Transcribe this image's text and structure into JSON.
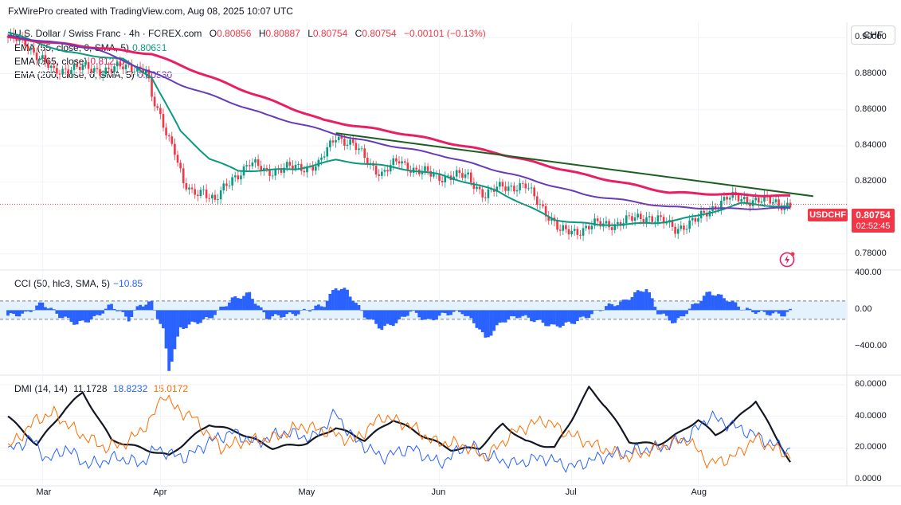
{
  "header": {
    "text": "FxWirePro created with TradingView.com, Aug 08, 2025 10:07 UTC"
  },
  "symbol": {
    "title": "U.S. Dollar / Swiss Franc · 4h · FOREX.com",
    "open_label": "O",
    "open": "0.80856",
    "high_label": "H",
    "high": "0.80887",
    "low_label": "L",
    "low": "0.80754",
    "close_label": "C",
    "close": "0.80754",
    "change": "−0.00101 (−0.13%)",
    "ticker": "USDCHF",
    "last_price": "0.80754",
    "countdown": "02:52:45",
    "currency": "CHF"
  },
  "indicators": {
    "ema55": {
      "label": "EMA (55, close, 0, SMA, 5)",
      "value": "0.80631",
      "color": "#089981"
    },
    "ema365": {
      "label": "EMA (365, close)",
      "value": "0.81210",
      "color": "#e91e63"
    },
    "ema200": {
      "label": "EMA (200, close, 0, SMA, 5)",
      "value": "0.80530",
      "color": "#673ab7"
    },
    "cci": {
      "label": "CCI (50, hlc3, SMA, 5)",
      "value": "−10.85",
      "color": "#2962ff"
    },
    "dmi": {
      "label": "DMI (14, 14)",
      "adx": "11.1728",
      "plus_di": "18.8232",
      "minus_di": "15.0172",
      "adx_color": "#131722",
      "plus_color": "#2962ff",
      "minus_color": "#ff6d00"
    }
  },
  "colors": {
    "up": "#089981",
    "down": "#f23645",
    "trendline": "#1b5e20",
    "cci_band": "#e3f2fd"
  },
  "chart_data": [
    {
      "type": "candlestick",
      "title": "U.S. Dollar / Swiss Franc · 4h · FOREX.com",
      "x_tick_labels": [
        "Mar",
        "Apr",
        "May",
        "Jun",
        "Jul",
        "Aug"
      ],
      "y_tick_labels": [
        "0.90000",
        "0.88000",
        "0.86000",
        "0.84000",
        "0.82000",
        "0.78000"
      ],
      "ylim": [
        0.775,
        0.905
      ],
      "price_anchors": [
        [
          0,
          0.9
        ],
        [
          6,
          0.897
        ],
        [
          12,
          0.888
        ],
        [
          16,
          0.88
        ],
        [
          22,
          0.884
        ],
        [
          30,
          0.882
        ],
        [
          38,
          0.883
        ],
        [
          44,
          0.884
        ],
        [
          48,
          0.882
        ],
        [
          50,
          0.866
        ],
        [
          54,
          0.852
        ],
        [
          58,
          0.838
        ],
        [
          61,
          0.818
        ],
        [
          64,
          0.813
        ],
        [
          68,
          0.816
        ],
        [
          72,
          0.809
        ],
        [
          78,
          0.822
        ],
        [
          84,
          0.83
        ],
        [
          90,
          0.826
        ],
        [
          100,
          0.828
        ],
        [
          108,
          0.829
        ],
        [
          114,
          0.846
        ],
        [
          120,
          0.84
        ],
        [
          130,
          0.824
        ],
        [
          136,
          0.832
        ],
        [
          142,
          0.826
        ],
        [
          150,
          0.823
        ],
        [
          160,
          0.823
        ],
        [
          166,
          0.812
        ],
        [
          172,
          0.818
        ],
        [
          180,
          0.817
        ],
        [
          186,
          0.806
        ],
        [
          192,
          0.792
        ],
        [
          198,
          0.793
        ],
        [
          204,
          0.796
        ],
        [
          212,
          0.797
        ],
        [
          222,
          0.801
        ],
        [
          226,
          0.799
        ],
        [
          232,
          0.794
        ],
        [
          240,
          0.799
        ],
        [
          246,
          0.807
        ],
        [
          250,
          0.811
        ],
        [
          260,
          0.81
        ],
        [
          268,
          0.808
        ],
        [
          272,
          0.8075
        ]
      ],
      "series": [
        {
          "name": "EMA (55, close, 0, SMA, 5)",
          "anchors": [
            [
              0,
              0.903
            ],
            [
              20,
              0.892
            ],
            [
              40,
              0.888
            ],
            [
              50,
              0.878
            ],
            [
              60,
              0.848
            ],
            [
              70,
              0.833
            ],
            [
              80,
              0.826
            ],
            [
              100,
              0.827
            ],
            [
              114,
              0.832
            ],
            [
              130,
              0.829
            ],
            [
              150,
              0.824
            ],
            [
              170,
              0.815
            ],
            [
              190,
              0.799
            ],
            [
              205,
              0.796
            ],
            [
              225,
              0.797
            ],
            [
              240,
              0.801
            ],
            [
              255,
              0.808
            ],
            [
              272,
              0.806
            ]
          ]
        },
        {
          "name": "EMA (365, close)",
          "anchors": [
            [
              0,
              0.9
            ],
            [
              50,
              0.891
            ],
            [
              80,
              0.872
            ],
            [
              110,
              0.854
            ],
            [
              140,
              0.846
            ],
            [
              170,
              0.836
            ],
            [
              200,
              0.824
            ],
            [
              230,
              0.814
            ],
            [
              272,
              0.812
            ]
          ]
        },
        {
          "name": "EMA (200, close, 0, SMA, 5)",
          "anchors": [
            [
              0,
              0.901
            ],
            [
              30,
              0.894
            ],
            [
              60,
              0.874
            ],
            [
              90,
              0.857
            ],
            [
              120,
              0.844
            ],
            [
              150,
              0.835
            ],
            [
              180,
              0.822
            ],
            [
              200,
              0.813
            ],
            [
              230,
              0.806
            ],
            [
              250,
              0.805
            ],
            [
              272,
              0.8053
            ]
          ]
        }
      ],
      "trendline": [
        [
          114,
          0.847
        ],
        [
          280,
          0.812
        ]
      ],
      "last_price": 0.80754
    },
    {
      "type": "bar",
      "title": "CCI (50, hlc3, SMA, 5)",
      "y_tick_labels": [
        "400.00",
        "0.00",
        "−400.00"
      ],
      "ylim": [
        -700,
        420
      ],
      "bands": [
        100,
        -100
      ],
      "anchors": [
        [
          0,
          -60
        ],
        [
          6,
          -40
        ],
        [
          12,
          80
        ],
        [
          18,
          -60
        ],
        [
          24,
          -150
        ],
        [
          30,
          -90
        ],
        [
          36,
          60
        ],
        [
          42,
          -100
        ],
        [
          46,
          60
        ],
        [
          50,
          80
        ],
        [
          54,
          -220
        ],
        [
          56,
          -650
        ],
        [
          60,
          -200
        ],
        [
          64,
          -150
        ],
        [
          70,
          -90
        ],
        [
          78,
          120
        ],
        [
          84,
          180
        ],
        [
          90,
          -80
        ],
        [
          100,
          -40
        ],
        [
          110,
          60
        ],
        [
          114,
          250
        ],
        [
          118,
          210
        ],
        [
          124,
          -60
        ],
        [
          130,
          -200
        ],
        [
          136,
          -120
        ],
        [
          140,
          -10
        ],
        [
          146,
          -120
        ],
        [
          152,
          -40
        ],
        [
          158,
          -20
        ],
        [
          164,
          -200
        ],
        [
          166,
          -320
        ],
        [
          172,
          -120
        ],
        [
          178,
          -60
        ],
        [
          184,
          -120
        ],
        [
          190,
          -180
        ],
        [
          196,
          -140
        ],
        [
          202,
          -60
        ],
        [
          208,
          40
        ],
        [
          214,
          90
        ],
        [
          218,
          180
        ],
        [
          222,
          240
        ],
        [
          226,
          -20
        ],
        [
          232,
          -140
        ],
        [
          238,
          40
        ],
        [
          244,
          200
        ],
        [
          250,
          120
        ],
        [
          256,
          10
        ],
        [
          262,
          -30
        ],
        [
          270,
          -50
        ],
        [
          272,
          -10.85
        ]
      ]
    },
    {
      "type": "line",
      "title": "DMI (14, 14)",
      "y_tick_labels": [
        "60.0000",
        "40.0000",
        "20.0000",
        "0.0000"
      ],
      "ylim": [
        0,
        62
      ],
      "series": [
        {
          "name": "ADX",
          "anchors": [
            [
              0,
              40
            ],
            [
              10,
              22
            ],
            [
              20,
              45
            ],
            [
              26,
              55
            ],
            [
              36,
              25
            ],
            [
              46,
              20
            ],
            [
              56,
              15
            ],
            [
              62,
              24
            ],
            [
              70,
              35
            ],
            [
              80,
              30
            ],
            [
              92,
              20
            ],
            [
              104,
              23
            ],
            [
              114,
              33
            ],
            [
              124,
              25
            ],
            [
              134,
              38
            ],
            [
              144,
              28
            ],
            [
              154,
              19
            ],
            [
              164,
              20
            ],
            [
              172,
              35
            ],
            [
              180,
              24
            ],
            [
              190,
              20
            ],
            [
              196,
              38
            ],
            [
              202,
              58
            ],
            [
              208,
              46
            ],
            [
              216,
              24
            ],
            [
              226,
              22
            ],
            [
              234,
              30
            ],
            [
              240,
              38
            ],
            [
              246,
              28
            ],
            [
              252,
              36
            ],
            [
              260,
              50
            ],
            [
              266,
              30
            ],
            [
              272,
              11.17
            ]
          ]
        },
        {
          "name": "+DI",
          "anchors": [
            [
              0,
              18
            ],
            [
              8,
              26
            ],
            [
              14,
              12
            ],
            [
              20,
              20
            ],
            [
              28,
              9
            ],
            [
              38,
              14
            ],
            [
              46,
              10
            ],
            [
              52,
              20
            ],
            [
              56,
              16
            ],
            [
              62,
              14
            ],
            [
              70,
              24
            ],
            [
              78,
              30
            ],
            [
              86,
              23
            ],
            [
              96,
              30
            ],
            [
              106,
              26
            ],
            [
              114,
              42
            ],
            [
              120,
              26
            ],
            [
              130,
              14
            ],
            [
              140,
              20
            ],
            [
              150,
              10
            ],
            [
              160,
              22
            ],
            [
              168,
              14
            ],
            [
              176,
              10
            ],
            [
              186,
              14
            ],
            [
              196,
              8
            ],
            [
              206,
              14
            ],
            [
              216,
              18
            ],
            [
              226,
              20
            ],
            [
              236,
              26
            ],
            [
              244,
              40
            ],
            [
              252,
              34
            ],
            [
              260,
              28
            ],
            [
              266,
              22
            ],
            [
              272,
              18.82
            ]
          ]
        },
        {
          "name": "−DI",
          "anchors": [
            [
              0,
              20
            ],
            [
              10,
              38
            ],
            [
              16,
              42
            ],
            [
              24,
              30
            ],
            [
              34,
              20
            ],
            [
              42,
              24
            ],
            [
              50,
              38
            ],
            [
              54,
              55
            ],
            [
              58,
              45
            ],
            [
              64,
              40
            ],
            [
              74,
              20
            ],
            [
              82,
              24
            ],
            [
              92,
              26
            ],
            [
              102,
              34
            ],
            [
              112,
              30
            ],
            [
              120,
              24
            ],
            [
              130,
              40
            ],
            [
              140,
              34
            ],
            [
              148,
              24
            ],
            [
              158,
              22
            ],
            [
              166,
              14
            ],
            [
              176,
              30
            ],
            [
              186,
              38
            ],
            [
              196,
              28
            ],
            [
              206,
              20
            ],
            [
              216,
              14
            ],
            [
              226,
              20
            ],
            [
              236,
              26
            ],
            [
              244,
              10
            ],
            [
              252,
              14
            ],
            [
              260,
              26
            ],
            [
              266,
              20
            ],
            [
              272,
              15.02
            ]
          ]
        }
      ]
    }
  ]
}
